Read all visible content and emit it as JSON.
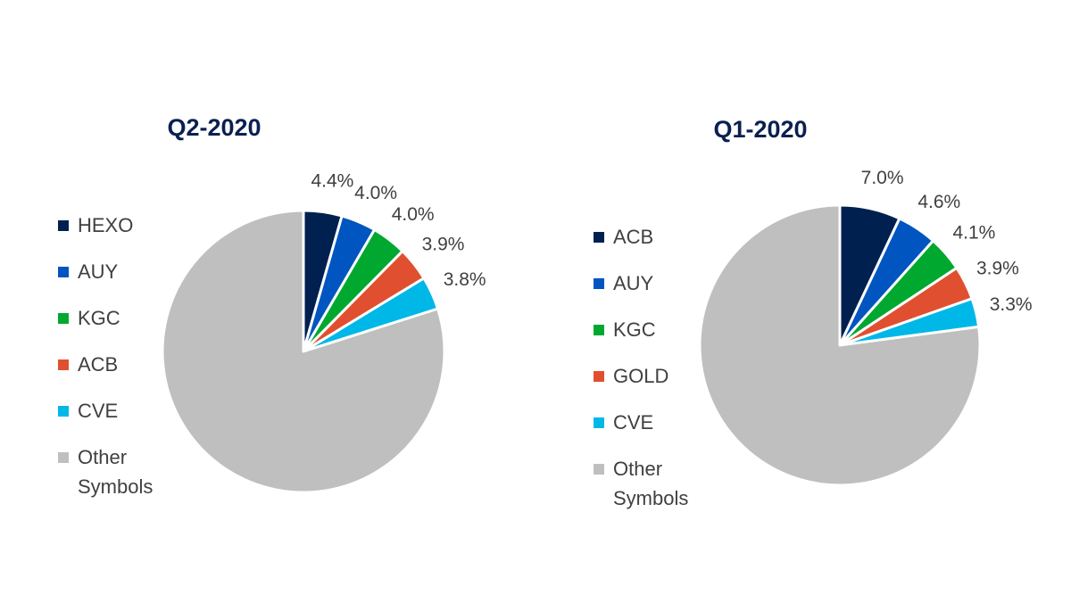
{
  "chart_data": [
    {
      "type": "pie",
      "title": "Q2-2020",
      "categories": [
        "HEXO",
        "AUY",
        "KGC",
        "ACB",
        "CVE",
        "Other Symbols"
      ],
      "values": [
        4.4,
        4.0,
        4.0,
        3.9,
        3.8,
        79.9
      ],
      "value_labels": [
        "4.4%",
        "4.0%",
        "4.0%",
        "3.9%",
        "3.8%",
        null
      ],
      "colors": [
        "#002050",
        "#0055c0",
        "#00a830",
        "#e05030",
        "#00b8e8",
        "#bfbfbf"
      ]
    },
    {
      "type": "pie",
      "title": "Q1-2020",
      "categories": [
        "ACB",
        "AUY",
        "KGC",
        "GOLD",
        "CVE",
        "Other Symbols"
      ],
      "values": [
        7.0,
        4.6,
        4.1,
        3.9,
        3.3,
        77.1
      ],
      "value_labels": [
        "7.0%",
        "4.6%",
        "4.1%",
        "3.9%",
        "3.3%",
        null
      ],
      "colors": [
        "#002050",
        "#0055c0",
        "#00a830",
        "#e05030",
        "#00b8e8",
        "#bfbfbf"
      ]
    }
  ]
}
